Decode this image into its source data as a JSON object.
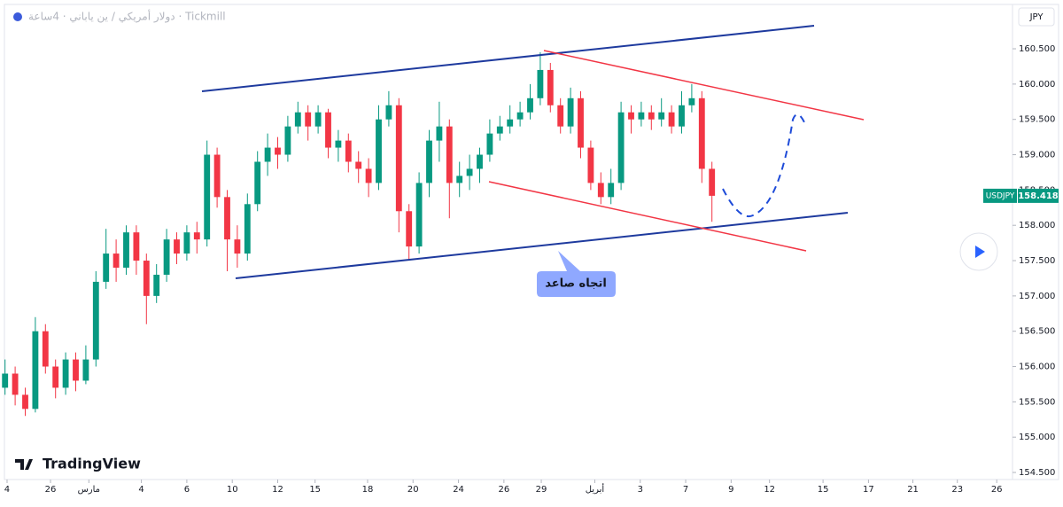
{
  "chart_data": {
    "type": "candlestick",
    "title": "دولار أمريكي / ين ياباني · 4ساعة · Tickmill",
    "currency": "JPY",
    "symbol": "USDJPY",
    "last_price": 158.418,
    "last_price_label": "158.418",
    "annotation": "اتجاه صاعد",
    "brand": "TradingView",
    "up_color": "#089981",
    "down_color": "#f23645",
    "x": [
      0,
      1,
      2,
      3,
      4,
      5,
      6,
      7,
      8,
      9,
      10,
      11,
      12,
      13,
      14,
      15,
      16,
      17,
      18,
      19,
      20,
      21,
      22,
      23,
      24,
      25,
      26,
      27,
      28,
      29,
      30,
      31,
      32,
      33,
      34,
      35,
      36,
      37,
      38,
      39,
      40,
      41,
      42,
      43,
      44,
      45,
      46,
      47,
      48,
      49,
      50,
      51,
      52,
      53,
      54,
      55,
      56,
      57,
      58,
      59,
      60,
      61,
      62,
      63,
      64,
      65,
      66,
      67,
      68,
      69,
      70
    ],
    "open": [
      155.7,
      155.9,
      155.6,
      155.4,
      156.5,
      156.0,
      155.7,
      156.1,
      155.8,
      156.1,
      157.2,
      157.6,
      157.4,
      157.9,
      157.5,
      157.0,
      157.3,
      157.8,
      157.6,
      157.9,
      157.8,
      159.0,
      158.4,
      157.8,
      157.6,
      158.3,
      158.9,
      159.1,
      159.0,
      159.4,
      159.6,
      159.4,
      159.6,
      159.1,
      159.2,
      158.9,
      158.8,
      158.6,
      159.5,
      159.7,
      158.2,
      157.7,
      158.6,
      159.2,
      159.4,
      158.6,
      158.7,
      158.8,
      159.0,
      159.3,
      159.4,
      159.5,
      159.6,
      159.8,
      160.2,
      159.7,
      159.4,
      159.8,
      159.1,
      158.6,
      158.4,
      158.6,
      159.6,
      159.5,
      159.6,
      159.5,
      159.6,
      159.4,
      159.7,
      159.8,
      158.8
    ],
    "high": [
      156.1,
      156.0,
      155.7,
      156.7,
      156.6,
      156.1,
      156.2,
      156.2,
      156.3,
      157.35,
      157.95,
      157.8,
      158.0,
      158.0,
      157.6,
      157.45,
      157.95,
      157.9,
      158.0,
      158.05,
      159.2,
      159.1,
      158.5,
      158.0,
      158.45,
      159.05,
      159.3,
      159.25,
      159.55,
      159.75,
      159.7,
      159.7,
      159.65,
      159.35,
      159.3,
      159.05,
      158.95,
      159.7,
      159.9,
      159.8,
      158.3,
      158.75,
      159.35,
      159.75,
      159.5,
      158.9,
      159.0,
      159.1,
      159.5,
      159.55,
      159.7,
      159.75,
      160.0,
      160.45,
      160.3,
      159.8,
      159.95,
      159.9,
      159.2,
      158.75,
      158.8,
      159.75,
      159.7,
      159.75,
      159.7,
      159.8,
      159.7,
      159.9,
      160.0,
      159.9,
      158.9
    ],
    "low": [
      155.6,
      155.45,
      155.3,
      155.35,
      155.9,
      155.55,
      155.6,
      155.65,
      155.75,
      156.0,
      157.1,
      157.2,
      157.3,
      157.3,
      156.6,
      156.9,
      157.2,
      157.45,
      157.5,
      157.6,
      157.7,
      158.25,
      157.35,
      157.4,
      157.5,
      158.2,
      158.7,
      158.8,
      158.9,
      159.3,
      159.2,
      159.3,
      158.95,
      158.9,
      158.75,
      158.6,
      158.4,
      158.5,
      159.4,
      157.9,
      157.5,
      157.6,
      158.4,
      158.9,
      158.1,
      158.4,
      158.5,
      158.6,
      158.9,
      159.2,
      159.3,
      159.4,
      159.5,
      159.7,
      159.6,
      159.3,
      159.3,
      158.95,
      158.5,
      158.3,
      158.3,
      158.5,
      159.3,
      159.4,
      159.35,
      159.4,
      159.3,
      159.3,
      159.6,
      158.6,
      158.05
    ],
    "close": [
      155.9,
      155.6,
      155.4,
      156.5,
      156.0,
      155.7,
      156.1,
      155.8,
      156.1,
      157.2,
      157.6,
      157.4,
      157.9,
      157.5,
      157.0,
      157.3,
      157.8,
      157.6,
      157.9,
      157.8,
      159.0,
      158.4,
      157.8,
      157.6,
      158.3,
      158.9,
      159.1,
      159.0,
      159.4,
      159.6,
      159.4,
      159.6,
      159.1,
      159.2,
      158.9,
      158.8,
      158.6,
      159.5,
      159.7,
      158.2,
      157.7,
      158.6,
      159.2,
      159.4,
      158.6,
      158.7,
      158.8,
      159.0,
      159.3,
      159.4,
      159.5,
      159.6,
      159.8,
      160.2,
      159.7,
      159.4,
      159.8,
      159.1,
      158.6,
      158.4,
      158.6,
      159.6,
      159.5,
      159.6,
      159.5,
      159.6,
      159.4,
      159.7,
      159.8,
      158.8,
      158.418
    ],
    "xlim": [
      -0.5,
      99.5
    ],
    "xticks": [
      {
        "value": 0.2,
        "label": "4"
      },
      {
        "value": 4.5,
        "label": "26"
      },
      {
        "value": 8.3,
        "label": "مارس"
      },
      {
        "value": 13.5,
        "label": "4"
      },
      {
        "value": 18,
        "label": "6"
      },
      {
        "value": 22.5,
        "label": "10"
      },
      {
        "value": 27,
        "label": "12"
      },
      {
        "value": 30.7,
        "label": "15"
      },
      {
        "value": 35.9,
        "label": "18"
      },
      {
        "value": 40.4,
        "label": "20"
      },
      {
        "value": 44.9,
        "label": "24"
      },
      {
        "value": 49.4,
        "label": "26"
      },
      {
        "value": 53.1,
        "label": "29"
      },
      {
        "value": 58.4,
        "label": "أبريل"
      },
      {
        "value": 62.9,
        "label": "3"
      },
      {
        "value": 67.4,
        "label": "7"
      },
      {
        "value": 71.9,
        "label": "9"
      },
      {
        "value": 75.7,
        "label": "12"
      },
      {
        "value": 81,
        "label": "15"
      },
      {
        "value": 85.5,
        "label": "17"
      },
      {
        "value": 89.9,
        "label": "21"
      },
      {
        "value": 94.3,
        "label": "23"
      },
      {
        "value": 98.2,
        "label": "26"
      }
    ],
    "ylim": [
      154.4,
      161.128
    ],
    "yticks": [
      {
        "value": 154.5,
        "label": "154.500"
      },
      {
        "value": 155,
        "label": "155.000"
      },
      {
        "value": 155.5,
        "label": "155.500"
      },
      {
        "value": 156,
        "label": "156.000"
      },
      {
        "value": 156.5,
        "label": "156.500"
      },
      {
        "value": 157,
        "label": "157.000"
      },
      {
        "value": 157.5,
        "label": "157.500"
      },
      {
        "value": 158,
        "label": "158.000"
      },
      {
        "value": 158.5,
        "label": "158.500"
      },
      {
        "value": 159,
        "label": "159.000"
      },
      {
        "value": 159.5,
        "label": "159.500"
      },
      {
        "value": 160,
        "label": "160.000"
      },
      {
        "value": 160.5,
        "label": "160.500"
      }
    ]
  }
}
